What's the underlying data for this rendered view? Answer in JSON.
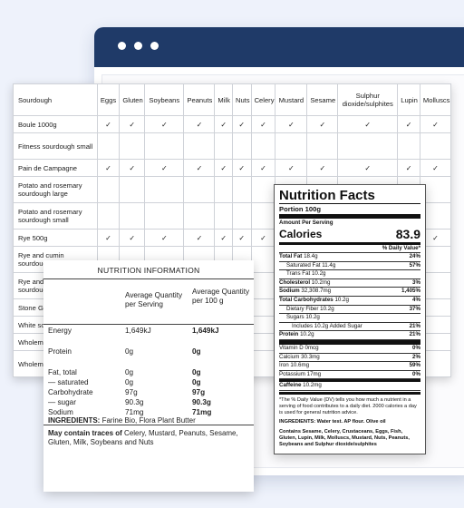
{
  "allergen_table": {
    "columns": [
      "Sourdough",
      "Eggs",
      "Gluten",
      "Soybeans",
      "Peanuts",
      "Milk",
      "Nuts",
      "Celery",
      "Mustard",
      "Sesame",
      "Sulphur dioxide/sulphites",
      "Lupin",
      "Molluscs"
    ],
    "check_symbol": "✓",
    "rows": [
      {
        "name": "Boule 1000g",
        "checks": [
          1,
          1,
          1,
          1,
          1,
          1,
          1,
          1,
          1,
          1,
          1,
          1
        ]
      },
      {
        "name": "Fitness sourdough small",
        "checks": [
          0,
          0,
          0,
          0,
          0,
          0,
          0,
          0,
          0,
          0,
          0,
          0
        ]
      },
      {
        "name": "Pain de Campagne",
        "checks": [
          1,
          1,
          1,
          1,
          1,
          1,
          1,
          1,
          1,
          1,
          1,
          1
        ]
      },
      {
        "name": "Potato and rosemary sourdough large",
        "checks": [
          0,
          0,
          0,
          0,
          0,
          0,
          0,
          0,
          0,
          0,
          0,
          0
        ]
      },
      {
        "name": "Potato and rosemary sourdough small",
        "checks": [
          0,
          0,
          0,
          0,
          0,
          0,
          0,
          0,
          0,
          0,
          0,
          0
        ]
      },
      {
        "name": "Rye 500g",
        "checks": [
          1,
          1,
          1,
          1,
          1,
          1,
          1,
          0,
          0,
          0,
          0,
          1
        ]
      },
      {
        "name": "Rye and cumin sourdough large",
        "checks": [
          0,
          0,
          0,
          0,
          0,
          0,
          0,
          0,
          0,
          0,
          0,
          0
        ]
      },
      {
        "name": "Rye and cumin sourdough small",
        "checks": [
          0,
          0,
          0,
          0,
          0,
          0,
          0,
          0,
          0,
          0,
          0,
          0
        ]
      },
      {
        "name": "Stone Gr",
        "checks": [
          0,
          0,
          0,
          0,
          0,
          0,
          0,
          0,
          0,
          0,
          0,
          0
        ]
      },
      {
        "name": "White so",
        "checks": [
          0,
          0,
          0,
          0,
          0,
          0,
          0,
          0,
          0,
          0,
          0,
          0
        ]
      },
      {
        "name": "Wholeme",
        "checks": [
          0,
          0,
          0,
          0,
          0,
          0,
          0,
          0,
          0,
          0,
          0,
          0
        ]
      },
      {
        "name": "Wholeme Large",
        "checks": [
          0,
          0,
          0,
          0,
          0,
          0,
          0,
          0,
          0,
          0,
          0,
          0
        ]
      }
    ]
  },
  "nutrition_information": {
    "title": "NUTRITION INFORMATION",
    "col1_header": "Average Quantity per Serving",
    "col2_header": "Average Quantity per 100 g",
    "rows": [
      {
        "label": "Energy",
        "serving": "1,649kJ",
        "per100": "1,649kJ"
      },
      {
        "label": "Protein",
        "serving": "0g",
        "per100": "0g"
      },
      {
        "label": "Fat, total",
        "serving": "0g",
        "per100": "0g"
      },
      {
        "label": "— saturated",
        "serving": "0g",
        "per100": "0g"
      },
      {
        "label": "Carbohydrate",
        "serving": "97g",
        "per100": "97g"
      },
      {
        "label": "— sugar",
        "serving": "90.3g",
        "per100": "90.3g"
      },
      {
        "label": "Sodium",
        "serving": "71mg",
        "per100": "71mg"
      }
    ],
    "ingredients_label": "INGREDIENTS:",
    "ingredients": "Farine Bio, Flora Plant Butter",
    "traces_label": "May contain traces of",
    "traces": "Celery, Mustard, Peanuts, Sesame, Gluten, Milk, Soybeans and Nuts"
  },
  "nutrition_facts": {
    "title": "Nutrition Facts",
    "portion": "Portion 100g",
    "amount_per_serving": "Amount Per Serving",
    "calories_label": "Calories",
    "calories_value": "83.9",
    "daily_value_header": "% Daily Value*",
    "rows": [
      {
        "label": "Total Fat",
        "amount": "18.4g",
        "dv": "24%",
        "bold": true,
        "indent": 0
      },
      {
        "label": "Saturated Fat",
        "amount": "11.4g",
        "dv": "57%",
        "bold": false,
        "indent": 1
      },
      {
        "label": "Trans Fat",
        "amount": "10.2g",
        "dv": "",
        "bold": false,
        "indent": 1
      },
      {
        "label": "Cholesterol",
        "amount": "10.2mg",
        "dv": "3%",
        "bold": true,
        "indent": 0
      },
      {
        "label": "Sodium",
        "amount": "32,308.7mg",
        "dv": "1,405%",
        "bold": true,
        "indent": 0
      },
      {
        "label": "Total Carbohydrates",
        "amount": "10.2g",
        "dv": "4%",
        "bold": true,
        "indent": 0
      },
      {
        "label": "Dietary Fiber",
        "amount": "10.2g",
        "dv": "37%",
        "bold": false,
        "indent": 1
      },
      {
        "label": "Sugars",
        "amount": "10.2g",
        "dv": "",
        "bold": false,
        "indent": 1
      },
      {
        "label": "Includes 10.2g Added Sugar",
        "amount": "",
        "dv": "21%",
        "bold": false,
        "indent": 2
      },
      {
        "label": "Protein",
        "amount": "10.2g",
        "dv": "21%",
        "bold": true,
        "indent": 0
      }
    ],
    "vitamins": [
      {
        "label": "Vitamin D",
        "amount": "0mcg",
        "dv": "0%"
      },
      {
        "label": "Calcium",
        "amount": "30.3mg",
        "dv": "2%"
      },
      {
        "label": "Iron",
        "amount": "10.6mg",
        "dv": "59%"
      },
      {
        "label": "Potassium",
        "amount": "17mg",
        "dv": "0%"
      }
    ],
    "caffeine_label": "Caffeine",
    "caffeine_amount": "10.2mg",
    "footnote": "*The % Daily Value (DV) tells you how much a nutrient in a serving of food contributes to a daily diet. 2000 calories a day is used for general nutrition advice.",
    "ingredients": "INGREDIENTS: Water test. AP flour. Olive oil",
    "contains": "Contains Sesame, Celery, Crustaceans, Eggs, Fish, Gluten, Lupin, Milk, Molluscs, Mustard, Nuts, Peanuts, Soybeans and Sulphur dioxide/sulphites"
  },
  "colors": {
    "window_bar": "#1f3a68",
    "background": "#eef2fb"
  }
}
